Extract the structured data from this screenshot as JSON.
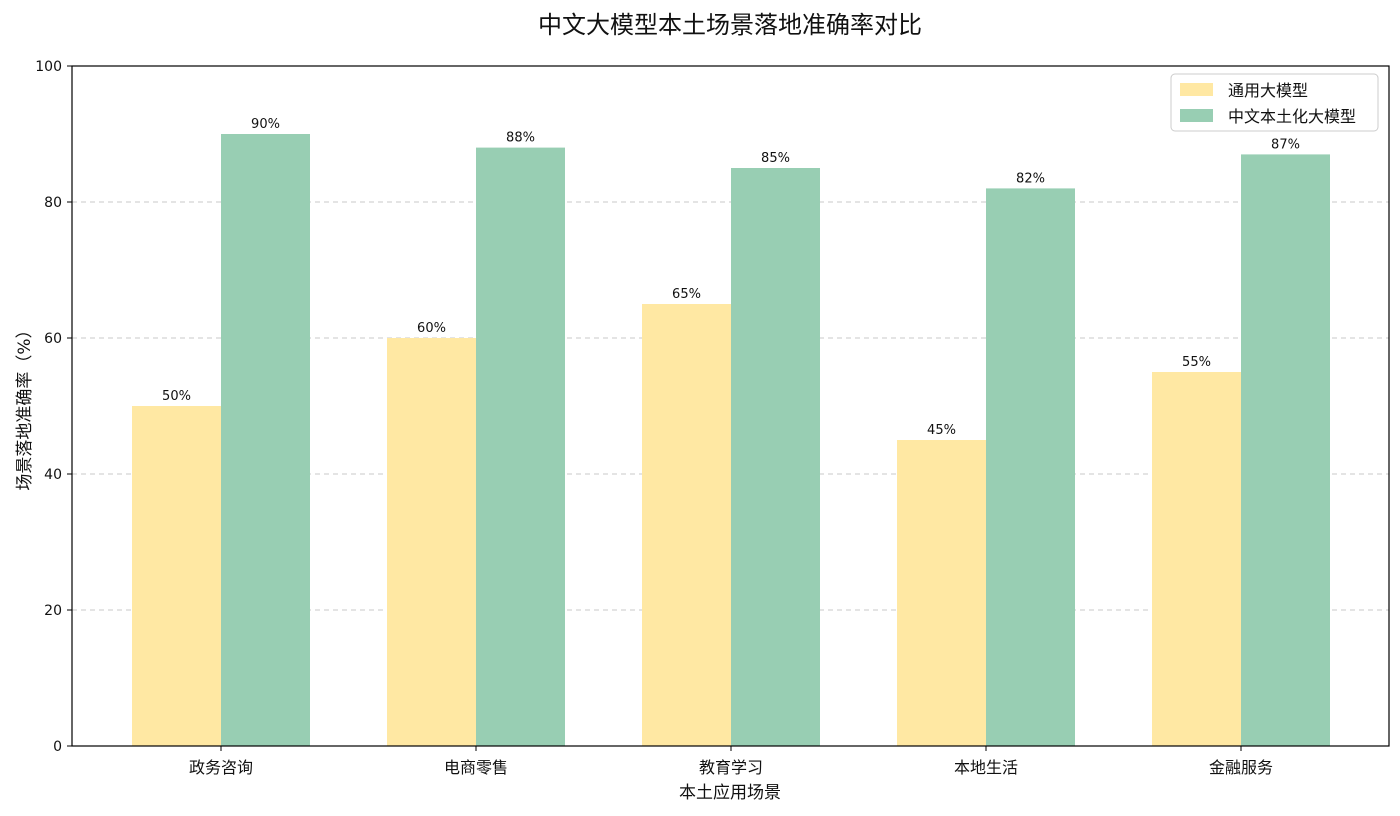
{
  "chart_data": {
    "type": "bar",
    "title": "中文大模型本土场景落地准确率对比",
    "xlabel": "本土应用场景",
    "ylabel": "场景落地准确率（%）",
    "categories": [
      "政务咨询",
      "电商零售",
      "教育学习",
      "本地生活",
      "金融服务"
    ],
    "series": [
      {
        "name": "通用大模型",
        "values": [
          50,
          60,
          65,
          45,
          55
        ],
        "labels": [
          "50%",
          "60%",
          "65%",
          "45%",
          "55%"
        ],
        "color": "#FFE8A3"
      },
      {
        "name": "中文本土化大模型",
        "values": [
          90,
          88,
          85,
          82,
          87
        ],
        "labels": [
          "90%",
          "88%",
          "85%",
          "82%",
          "87%"
        ],
        "color": "#98CEB3"
      }
    ],
    "ylim": [
      0,
      100
    ],
    "yticks": [
      0,
      20,
      40,
      60,
      80,
      100
    ],
    "ytick_labels": [
      "0",
      "20",
      "40",
      "60",
      "80",
      "100"
    ],
    "grid": "horizontal dashed",
    "legend_position": "top-right"
  }
}
